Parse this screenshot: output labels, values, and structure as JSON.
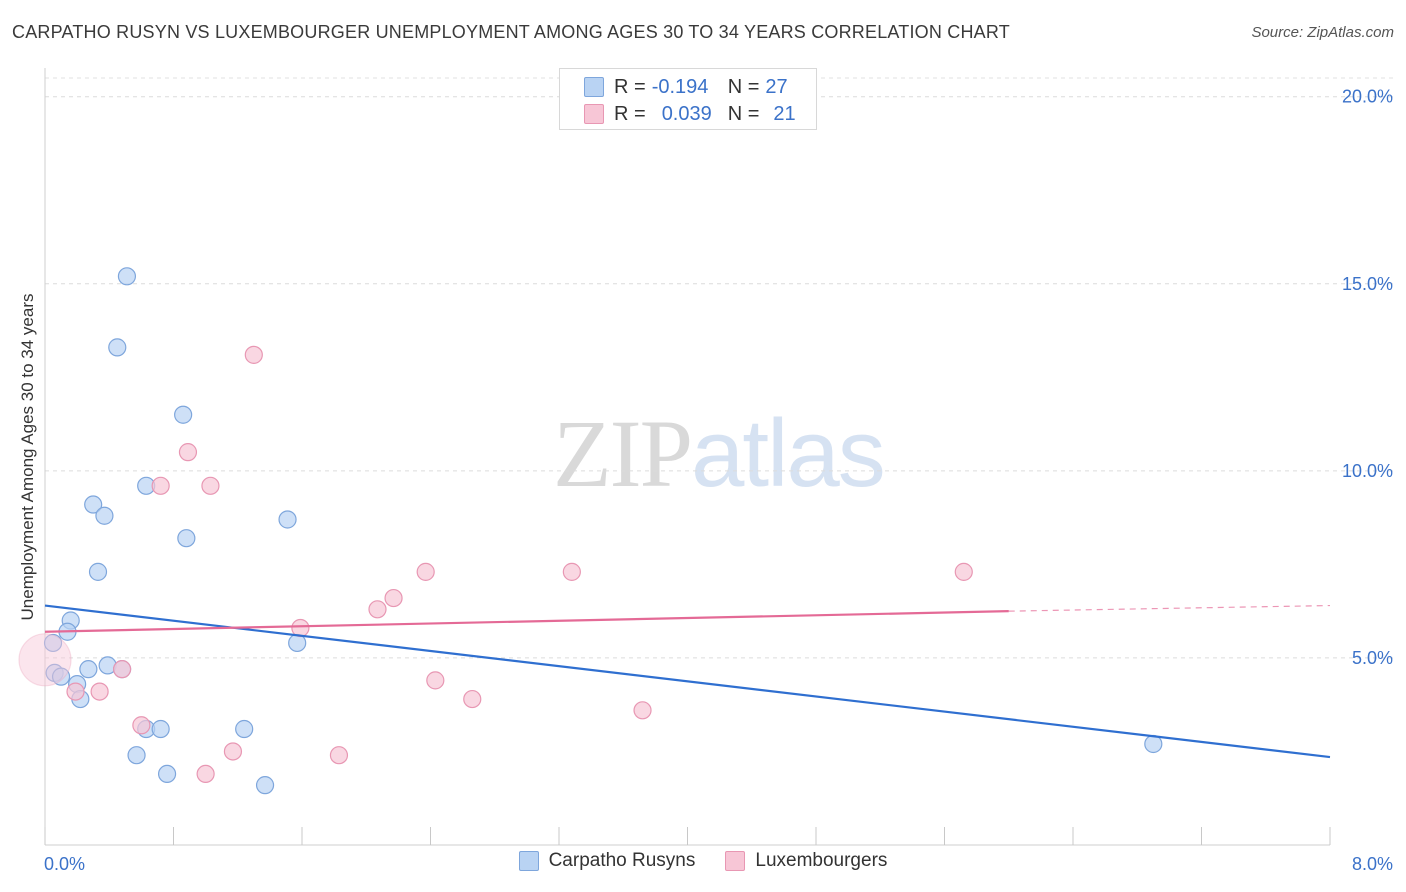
{
  "title": "CARPATHO RUSYN VS LUXEMBOURGER UNEMPLOYMENT AMONG AGES 30 TO 34 YEARS CORRELATION CHART",
  "source": "Source: ZipAtlas.com",
  "watermark": {
    "zip": "ZIP",
    "atlas": "atlas"
  },
  "legend": {
    "rows": [
      {
        "r_label": "R =",
        "r_value": "-0.194",
        "n_label": "N =",
        "n_value": "27"
      },
      {
        "r_label": "R =",
        "r_value": "0.039",
        "n_label": "N =",
        "n_value": "21"
      }
    ]
  },
  "bottom_legend": [
    "Carpatho Rusyns",
    "Luxembourgers"
  ],
  "colors": {
    "blue_fill": "#b9d3f3",
    "blue_stroke": "#7ea6dc",
    "blue_line": "#2f6fd0",
    "pink_fill": "#f7c6d6",
    "pink_stroke": "#e897b3",
    "pink_line": "#e46a96",
    "tick_label": "#3b72c9"
  },
  "chart_data": {
    "type": "scatter",
    "title": "CARPATHO RUSYN VS LUXEMBOURGER UNEMPLOYMENT AMONG AGES 30 TO 34 YEARS CORRELATION CHART",
    "xlabel": "",
    "ylabel": "Unemployment Among Ages 30 to 34 years",
    "xlim": [
      0,
      8
    ],
    "ylim": [
      0,
      20.5
    ],
    "x_tick_labels": [
      "0.0%",
      "8.0%"
    ],
    "y_ticks": [
      5,
      10,
      15,
      20
    ],
    "y_tick_labels": [
      "5.0%",
      "10.0%",
      "15.0%",
      "20.0%"
    ],
    "grid": "horizontal dashed",
    "legend_position": "top-center",
    "series": [
      {
        "name": "Carpatho Rusyns",
        "points": [
          [
            0.51,
            15.2
          ],
          [
            0.45,
            13.3
          ],
          [
            0.86,
            11.5
          ],
          [
            0.63,
            9.6
          ],
          [
            0.3,
            9.1
          ],
          [
            0.37,
            8.8
          ],
          [
            0.88,
            8.2
          ],
          [
            1.51,
            8.7
          ],
          [
            0.33,
            7.3
          ],
          [
            0.16,
            6.0
          ],
          [
            0.14,
            5.7
          ],
          [
            0.05,
            5.4
          ],
          [
            1.57,
            5.4
          ],
          [
            0.06,
            4.6
          ],
          [
            0.1,
            4.5
          ],
          [
            0.27,
            4.7
          ],
          [
            0.39,
            4.8
          ],
          [
            0.48,
            4.7
          ],
          [
            0.2,
            4.3
          ],
          [
            0.22,
            3.9
          ],
          [
            0.63,
            3.1
          ],
          [
            0.72,
            3.1
          ],
          [
            1.24,
            3.1
          ],
          [
            0.57,
            2.4
          ],
          [
            0.76,
            1.9
          ],
          [
            1.37,
            1.6
          ],
          [
            6.9,
            2.7
          ]
        ],
        "trend": {
          "x": [
            0,
            8
          ],
          "y": [
            6.4,
            2.35
          ]
        }
      },
      {
        "name": "Luxembourgers",
        "points": [
          [
            0.0,
            4.95
          ],
          [
            1.3,
            13.1
          ],
          [
            0.89,
            10.5
          ],
          [
            0.72,
            9.6
          ],
          [
            1.03,
            9.6
          ],
          [
            2.37,
            7.3
          ],
          [
            3.28,
            7.3
          ],
          [
            5.72,
            7.3
          ],
          [
            2.17,
            6.6
          ],
          [
            2.07,
            6.3
          ],
          [
            1.59,
            5.8
          ],
          [
            0.48,
            4.7
          ],
          [
            0.19,
            4.1
          ],
          [
            0.34,
            4.1
          ],
          [
            2.43,
            4.4
          ],
          [
            2.66,
            3.9
          ],
          [
            3.72,
            3.6
          ],
          [
            0.6,
            3.2
          ],
          [
            1.17,
            2.5
          ],
          [
            1.83,
            2.4
          ],
          [
            1.0,
            1.9
          ]
        ],
        "trend": {
          "x": [
            0,
            6.0
          ],
          "y": [
            5.7,
            6.25
          ],
          "dashed_extension": {
            "x": [
              6.0,
              8.0
            ],
            "y": [
              6.25,
              6.4
            ]
          }
        }
      }
    ]
  }
}
